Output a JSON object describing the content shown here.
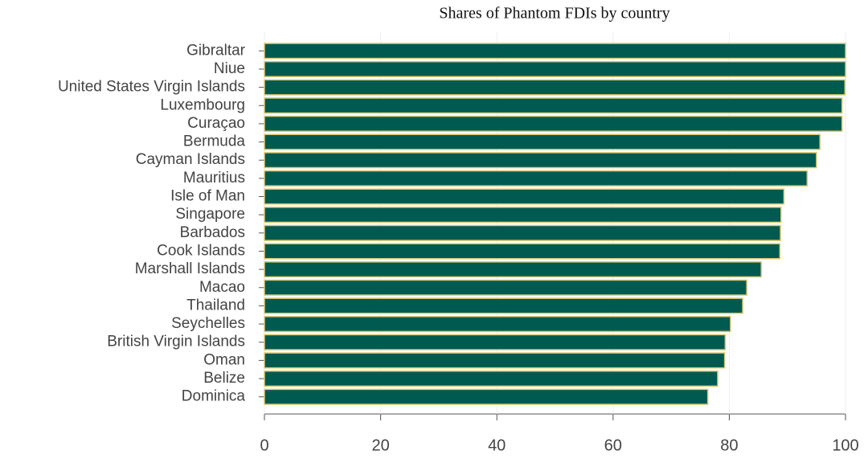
{
  "chart_data": {
    "type": "barh",
    "title": "Shares of Phantom FDIs by country",
    "categories": [
      "Gibraltar",
      "Niue",
      "United States Virgin Islands",
      "Luxembourg",
      "Curaçao",
      "Bermuda",
      "Cayman Islands",
      "Mauritius",
      "Isle of Man",
      "Singapore",
      "Barbados",
      "Cook Islands",
      "Marshall Islands",
      "Macao",
      "Thailand",
      "Seychelles",
      "British Virgin Islands",
      "Oman",
      "Belize",
      "Dominica"
    ],
    "values": [
      100,
      100,
      99.9,
      99.4,
      99.4,
      95.6,
      95.0,
      93.4,
      89.4,
      88.9,
      88.8,
      88.7,
      85.5,
      83.0,
      82.3,
      80.2,
      79.3,
      79.2,
      78.0,
      76.3
    ],
    "color": "#005a50",
    "edgecolor": "#d8c872",
    "xlim": [
      0,
      100
    ],
    "xticks": [
      0,
      20,
      40,
      60,
      80,
      100
    ]
  }
}
